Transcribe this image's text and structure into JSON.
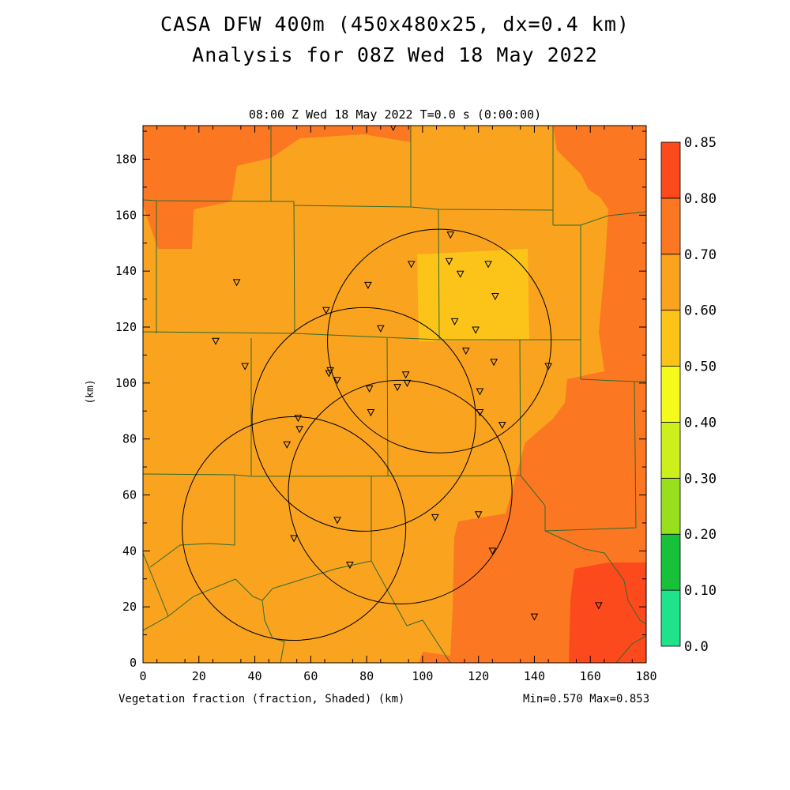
{
  "title_line1": "CASA DFW 400m (450x480x25, dx=0.4 km)",
  "title_line2": "Analysis for 08Z Wed 18 May 2022",
  "subtitle": "08:00 Z Wed 18 May 2022   T=0.0 s (0:00:00)",
  "footer_left": "Vegetation fraction (fraction, Shaded)  (km)",
  "footer_right": "Min=0.570 Max=0.853",
  "colors": {
    "c050_060": "#fcc419",
    "c060_070": "#f9a31e",
    "c070_080": "#fb7722",
    "c080_085": "#fd4a1d",
    "county_line": "#2f6b2f"
  },
  "chart_data": {
    "type": "heatmap",
    "variable": "Vegetation fraction (fraction, Shaded)",
    "xlim": [
      0,
      180
    ],
    "ylim": [
      0,
      192
    ],
    "xticks": [
      0,
      20,
      40,
      60,
      80,
      100,
      120,
      140,
      160,
      180
    ],
    "yticks": [
      0,
      20,
      40,
      60,
      80,
      100,
      120,
      140,
      160,
      180
    ],
    "ylabel": "(km)",
    "xlabel": "(km)",
    "min": 0.57,
    "max": 0.853,
    "colorbar": {
      "labels": [
        "0.0",
        "0.10",
        "0.20",
        "0.30",
        "0.40",
        "0.50",
        "0.60",
        "0.70",
        "0.80",
        "0.85"
      ],
      "colors": [
        "#1ee38a",
        "#17c13a",
        "#98df1c",
        "#cdf01d",
        "#f4fb1c",
        "#fcc419",
        "#f9a31e",
        "#fb7722",
        "#fd4a1d"
      ]
    },
    "radar_sites": [
      {
        "x": 54,
        "y": 48,
        "radius_km": 40
      },
      {
        "x": 79,
        "y": 87,
        "radius_km": 40
      },
      {
        "x": 106,
        "y": 115,
        "radius_km": 40
      },
      {
        "x": 92,
        "y": 61,
        "radius_km": 40
      }
    ],
    "stations": [
      [
        89.5,
        191.5
      ],
      [
        110,
        153
      ],
      [
        109.5,
        143.5
      ],
      [
        96,
        142.5
      ],
      [
        123.5,
        142.5
      ],
      [
        113.5,
        139
      ],
      [
        80.5,
        135
      ],
      [
        33.5,
        136
      ],
      [
        126,
        131
      ],
      [
        65.5,
        126
      ],
      [
        111.5,
        122
      ],
      [
        85,
        119.5
      ],
      [
        119,
        119
      ],
      [
        26,
        115
      ],
      [
        115.5,
        111.5
      ],
      [
        125.5,
        107.5
      ],
      [
        145,
        106
      ],
      [
        36.5,
        106
      ],
      [
        67,
        104.5
      ],
      [
        66.5,
        103.5
      ],
      [
        69.5,
        101
      ],
      [
        94,
        103
      ],
      [
        94.5,
        100
      ],
      [
        91,
        98.5
      ],
      [
        81,
        98
      ],
      [
        120.5,
        97
      ],
      [
        81.5,
        89.5
      ],
      [
        120.5,
        89.5
      ],
      [
        128.5,
        85
      ],
      [
        55.5,
        87.5
      ],
      [
        56,
        83.5
      ],
      [
        51.5,
        78
      ],
      [
        69.5,
        51
      ],
      [
        104.5,
        52
      ],
      [
        120,
        53
      ],
      [
        54,
        44.5
      ],
      [
        74,
        35
      ],
      [
        125,
        40
      ],
      [
        140,
        16.5
      ],
      [
        163,
        20.5
      ]
    ]
  }
}
